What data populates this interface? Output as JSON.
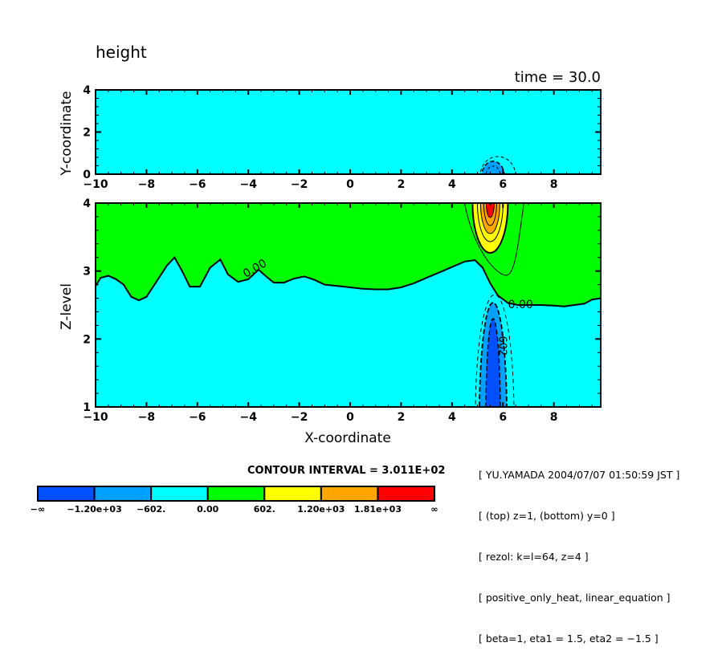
{
  "chart_data": {
    "type": "heatmap",
    "title": "height",
    "subtitle": "time = 30.0",
    "contour_interval_label": "CONTOUR INTERVAL = 3.011E+02",
    "contour_interval": 301.1,
    "panels": [
      {
        "name": "top",
        "xlabel": "",
        "ylabel": "Y-coordinate",
        "xlim": [
          -10,
          9.84
        ],
        "ylim": [
          0,
          4
        ],
        "xticks": [
          -10,
          -8,
          -6,
          -4,
          -2,
          0,
          2,
          4,
          6,
          8
        ],
        "xtick_labels": [
          "−10",
          "−8",
          "−6",
          "−4",
          "−2",
          "0",
          "2",
          "4",
          "6",
          "8"
        ],
        "yticks": [
          0,
          2,
          4
        ],
        "ytick_labels": [
          "0",
          "2",
          "4"
        ],
        "background_level": "-602 to 0",
        "features": [
          {
            "type": "negative-anomaly",
            "x_center": 5.6,
            "y_base": 0,
            "y_top": 0.9,
            "min_level": "-1.20e+03 to -602"
          }
        ]
      },
      {
        "name": "bottom",
        "xlabel": "X-coordinate",
        "ylabel": "Z-level",
        "xlim": [
          -10,
          9.84
        ],
        "ylim": [
          1,
          4
        ],
        "xticks": [
          -10,
          -8,
          -6,
          -4,
          -2,
          0,
          2,
          4,
          6,
          8
        ],
        "xtick_labels": [
          "−10",
          "−8",
          "−6",
          "−4",
          "−2",
          "0",
          "2",
          "4",
          "6",
          "8"
        ],
        "yticks": [
          1,
          2,
          3,
          4
        ],
        "ytick_labels": [
          "1",
          "2",
          "3",
          "4"
        ],
        "zero_contour_label": "0.00",
        "negative_contour_label": "-602",
        "zero_contour": {
          "x": [
            -10,
            -9.8,
            -9.5,
            -9.2,
            -8.9,
            -8.6,
            -8.3,
            -8.0,
            -7.6,
            -7.2,
            -6.9,
            -6.6,
            -6.3,
            -5.9,
            -5.5,
            -5.1,
            -4.8,
            -4.4,
            -4.0,
            -3.6,
            -3.3,
            -3.0,
            -2.6,
            -2.2,
            -1.8,
            -1.4,
            -1.0,
            -0.5,
            0,
            0.5,
            1.0,
            1.5,
            2.0,
            2.5,
            3.0,
            3.5,
            4.0,
            4.5,
            4.9,
            5.2,
            5.5,
            5.8,
            6.2,
            6.6,
            7.0,
            7.5,
            8.0,
            8.4,
            8.8,
            9.2,
            9.5,
            9.84
          ],
          "z": [
            2.78,
            2.9,
            2.93,
            2.88,
            2.8,
            2.62,
            2.57,
            2.62,
            2.85,
            3.08,
            3.2,
            3.0,
            2.77,
            2.77,
            3.05,
            3.17,
            2.95,
            2.84,
            2.88,
            3.02,
            2.92,
            2.83,
            2.83,
            2.89,
            2.92,
            2.87,
            2.8,
            2.78,
            2.76,
            2.74,
            2.73,
            2.73,
            2.76,
            2.82,
            2.9,
            2.98,
            3.06,
            3.14,
            3.16,
            3.05,
            2.82,
            2.64,
            2.53,
            2.5,
            2.5,
            2.5,
            2.49,
            2.48,
            2.5,
            2.52,
            2.58,
            2.6
          ]
        },
        "features": [
          {
            "type": "positive-anomaly",
            "x_center": 5.5,
            "z_top": 4,
            "z_bottom": 3.4,
            "max_level": "> 1.81e+03"
          },
          {
            "type": "negative-anomaly",
            "x_center": 5.6,
            "z_top": 2.6,
            "z_bottom": 1,
            "min_level": "-1.20e+03 to -602"
          }
        ]
      }
    ],
    "colorbar": {
      "boundaries": [
        "−∞",
        "−1.20e+03",
        "−602.",
        "0.00",
        "602.",
        "1.20e+03",
        "1.81e+03",
        "∞"
      ],
      "colors": [
        "#0050ff",
        "#00a0ff",
        "#00ffff",
        "#00ff00",
        "#ffff00",
        "#ffa500",
        "#ff0000"
      ]
    }
  },
  "info_lines": [
    "[ YU.YAMADA 2004/07/07 01:50:59 JST ]",
    "[ (top) z=1, (bottom) y=0 ]",
    "[ rezol: k=l=64, z=4 ]",
    "[ positive_only_heat, linear_equation ]",
    "[ beta=1, eta1 = 1.5, eta2 = −1.5 ]"
  ]
}
